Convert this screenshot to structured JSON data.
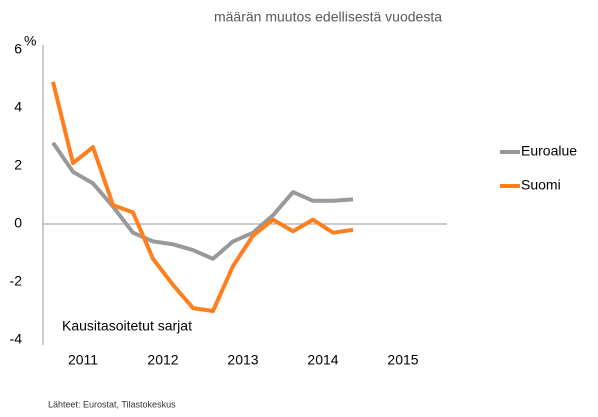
{
  "chart_data": {
    "type": "line",
    "title": "määrän muutos edellisestä vuodesta",
    "y_label": "%",
    "annotation": "Kausitasoitetut sarjat",
    "source": "Lähteet: Eurostat, Tilastokeskus",
    "categories": [
      "2011",
      null,
      null,
      null,
      "2012",
      null,
      null,
      null,
      "2013",
      null,
      null,
      null,
      "2014",
      null,
      null,
      null,
      "2015",
      null,
      null,
      null
    ],
    "series": [
      {
        "name": "Euroalue",
        "color": "#999999",
        "values": [
          2.8,
          1.8,
          1.4,
          0.6,
          -0.3,
          -0.6,
          -0.7,
          -0.9,
          -1.2,
          -0.6,
          -0.3,
          0.3,
          1.1,
          0.8,
          0.8,
          0.85,
          null,
          null,
          null,
          null
        ]
      },
      {
        "name": "Suomi",
        "color": "#ff7f1e",
        "values": [
          4.9,
          2.1,
          2.65,
          0.65,
          0.4,
          -1.2,
          -2.1,
          -2.9,
          -3.0,
          -1.45,
          -0.4,
          0.15,
          -0.25,
          0.15,
          -0.3,
          -0.2,
          null,
          null,
          null,
          null
        ]
      }
    ],
    "ylim": [
      -4,
      6
    ],
    "yticks": [
      -4,
      -2,
      0,
      2,
      4,
      6
    ],
    "grid": false,
    "legend": "right"
  }
}
